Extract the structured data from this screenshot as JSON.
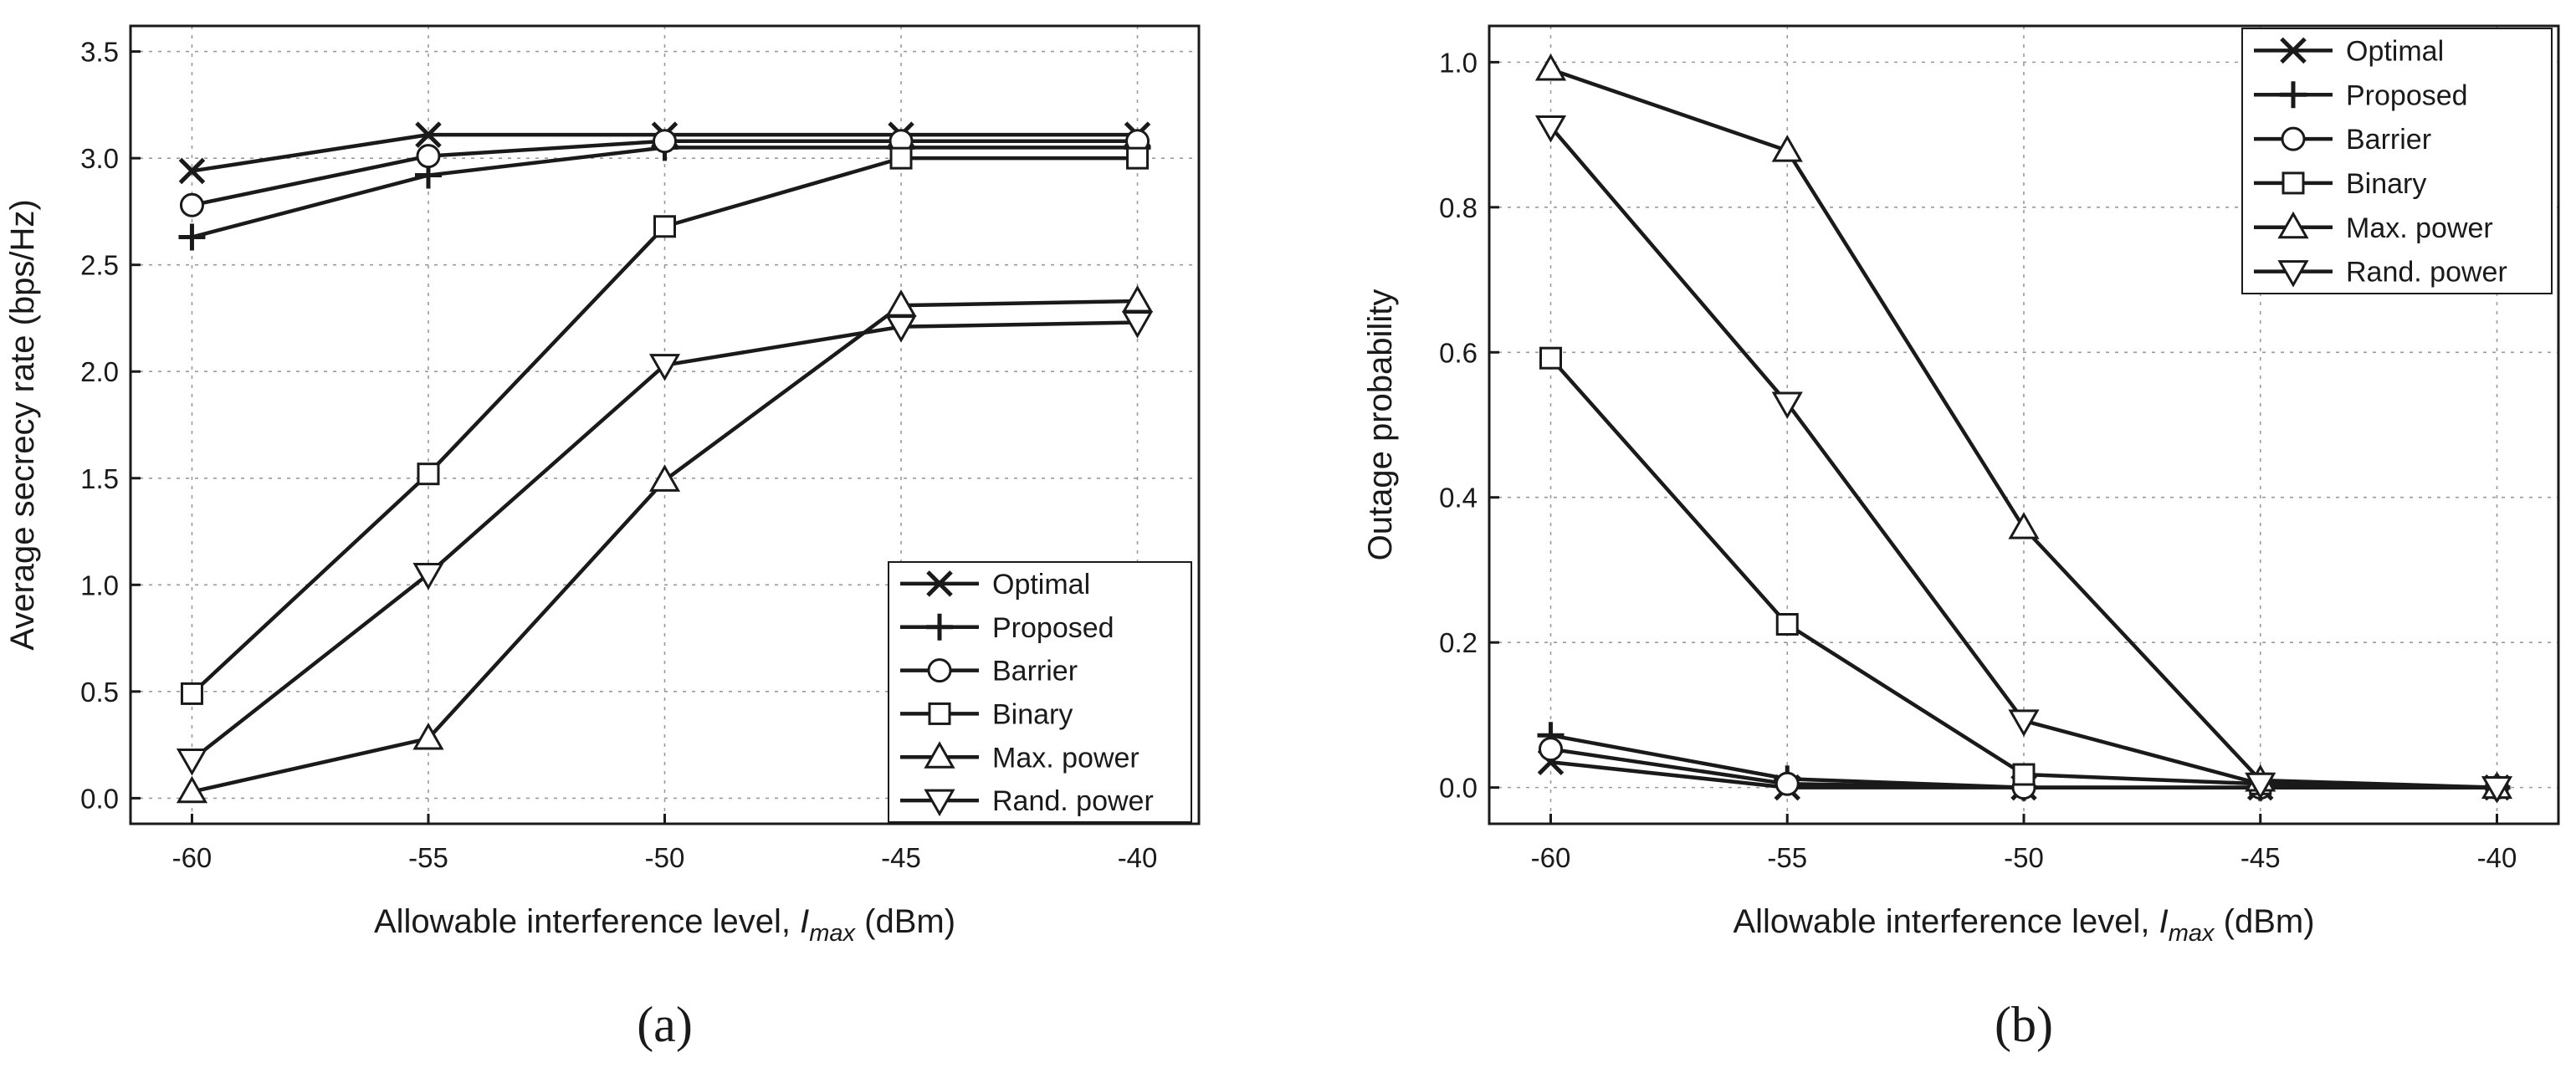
{
  "chart_data": [
    {
      "type": "line",
      "panel_label": "(a)",
      "xlabel": {
        "prefix": "Allowable interference level, ",
        "symbol": "I",
        "subscript": "max",
        "suffix": " (dBm)"
      },
      "ylabel": "Average secrecy rate (bps/Hz)",
      "x": [
        -60,
        -55,
        -50,
        -45,
        -40
      ],
      "xticks": [
        -60,
        -55,
        -50,
        -45,
        -40
      ],
      "xtick_labels": [
        "-60",
        "-55",
        "-50",
        "-45",
        "-40"
      ],
      "yticks": [
        0.0,
        0.5,
        1.0,
        1.5,
        2.0,
        2.5,
        3.0,
        3.5
      ],
      "ytick_labels": [
        "0.0",
        "0.5",
        "1.0",
        "1.5",
        "2.0",
        "2.5",
        "3.0",
        "3.5"
      ],
      "xlim": [
        -61.3,
        -38.7
      ],
      "ylim": [
        -0.12,
        3.62
      ],
      "grid": true,
      "legend_position": "bottom-right",
      "series": [
        {
          "name": "Optimal",
          "marker": "x",
          "values": [
            2.94,
            3.11,
            3.11,
            3.11,
            3.11
          ]
        },
        {
          "name": "Proposed",
          "marker": "plus",
          "values": [
            2.63,
            2.92,
            3.05,
            3.05,
            3.05
          ]
        },
        {
          "name": "Barrier",
          "marker": "circle",
          "values": [
            2.78,
            3.01,
            3.08,
            3.08,
            3.08
          ]
        },
        {
          "name": "Binary",
          "marker": "square",
          "values": [
            0.49,
            1.52,
            2.68,
            3.0,
            3.0
          ]
        },
        {
          "name": "Max. power",
          "marker": "triangle-up",
          "values": [
            0.03,
            0.28,
            1.49,
            2.31,
            2.33
          ]
        },
        {
          "name": "Rand. power",
          "marker": "triangle-down",
          "values": [
            0.18,
            1.05,
            2.03,
            2.21,
            2.23
          ]
        }
      ]
    },
    {
      "type": "line",
      "panel_label": "(b)",
      "xlabel": {
        "prefix": "Allowable interference level, ",
        "symbol": "I",
        "subscript": "max",
        "suffix": " (dBm)"
      },
      "ylabel": "Outage probability",
      "x": [
        -60,
        -55,
        -50,
        -45,
        -40
      ],
      "xticks": [
        -60,
        -55,
        -50,
        -45,
        -40
      ],
      "xtick_labels": [
        "-60",
        "-55",
        "-50",
        "-45",
        "-40"
      ],
      "yticks": [
        0.0,
        0.2,
        0.4,
        0.6,
        0.8,
        1.0
      ],
      "ytick_labels": [
        "0.0",
        "0.2",
        "0.4",
        "0.6",
        "0.8",
        "1.0"
      ],
      "xlim": [
        -61.3,
        -38.7
      ],
      "ylim": [
        -0.05,
        1.05
      ],
      "grid": true,
      "legend_position": "top-right",
      "series": [
        {
          "name": "Optimal",
          "marker": "x",
          "values": [
            0.035,
            0.0,
            0.0,
            0.0,
            0.0
          ]
        },
        {
          "name": "Proposed",
          "marker": "plus",
          "values": [
            0.072,
            0.012,
            0.0,
            0.0,
            0.0
          ]
        },
        {
          "name": "Barrier",
          "marker": "circle",
          "values": [
            0.053,
            0.005,
            0.0,
            0.0,
            0.0
          ]
        },
        {
          "name": "Binary",
          "marker": "square",
          "values": [
            0.592,
            0.225,
            0.018,
            0.005,
            0.0
          ]
        },
        {
          "name": "Max. power",
          "marker": "triangle-up",
          "values": [
            0.99,
            0.878,
            0.358,
            0.01,
            0.0
          ]
        },
        {
          "name": "Rand. power",
          "marker": "triangle-down",
          "values": [
            0.911,
            0.53,
            0.092,
            0.005,
            0.0
          ]
        }
      ]
    }
  ]
}
